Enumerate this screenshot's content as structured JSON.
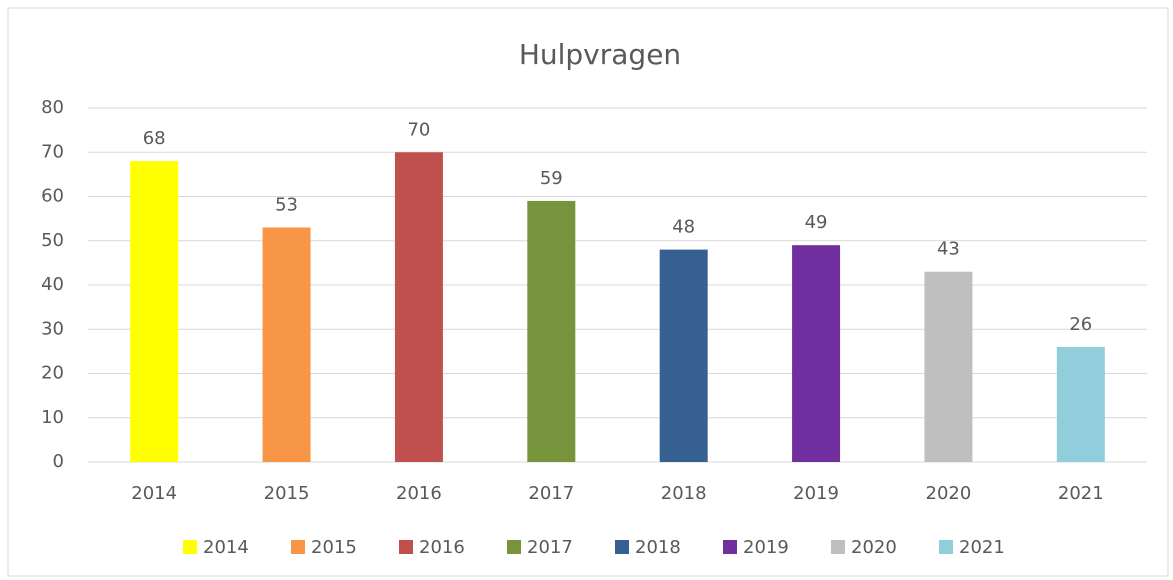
{
  "chart_data": {
    "type": "bar",
    "title": "Hulpvragen",
    "categories": [
      "2014",
      "2015",
      "2016",
      "2017",
      "2018",
      "2019",
      "2020",
      "2021"
    ],
    "values": [
      68,
      53,
      70,
      59,
      48,
      49,
      43,
      26
    ],
    "colors": [
      "#ffff00",
      "#f79646",
      "#c0504d",
      "#77933c",
      "#376092",
      "#7030a0",
      "#bfbfbf",
      "#92cddc"
    ],
    "ylim": [
      0,
      80
    ],
    "yticks": [
      0,
      10,
      20,
      30,
      40,
      50,
      60,
      70,
      80
    ],
    "grid": true,
    "legend": "bottom"
  }
}
